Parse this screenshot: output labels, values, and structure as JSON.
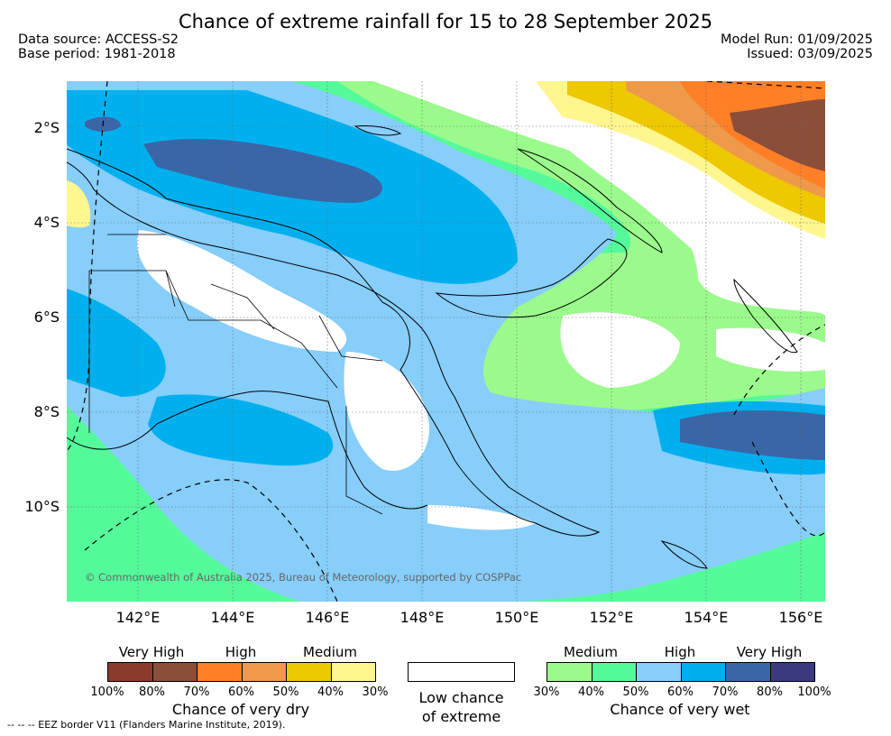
{
  "title": "Chance of extreme rainfall for 15 to 28 September 2025",
  "header": {
    "data_source": "Data source: ACCESS-S2",
    "base_period": "Base period: 1981-2018",
    "model_run": "Model Run: 01/09/2025",
    "issued": "Issued: 03/09/2025"
  },
  "map": {
    "lat_labels": [
      "2°S",
      "4°S",
      "6°S",
      "8°S",
      "10°S"
    ],
    "lon_labels": [
      "142°E",
      "144°E",
      "146°E",
      "148°E",
      "150°E",
      "152°E",
      "154°E",
      "156°E"
    ],
    "copyright": "© Commonwealth of Australia 2025, Bureau of Meteorology, supported by COSPPac"
  },
  "legend": {
    "dry": {
      "captions": [
        "Very High",
        "High",
        "Medium"
      ],
      "percents": [
        "100%",
        "80%",
        "70%",
        "60%",
        "50%",
        "40%",
        "30%"
      ],
      "colors": [
        "#8b3a2e",
        "#8b4e3a",
        "#ff7f27",
        "#ee9a4a",
        "#eec800",
        "#fff68f"
      ],
      "title": "Chance of very dry"
    },
    "low": {
      "line1": "Low chance",
      "line2": "of extreme"
    },
    "wet": {
      "captions": [
        "Medium",
        "High",
        "Very High"
      ],
      "percents": [
        "30%",
        "40%",
        "50%",
        "60%",
        "70%",
        "80%",
        "100%"
      ],
      "colors": [
        "#9bfa8c",
        "#54fa9a",
        "#87cefa",
        "#00b0ee",
        "#3a66a8",
        "#3a3a80"
      ],
      "title": "Chance of very wet"
    }
  },
  "footer": "--  --  -- EEZ border V11 (Flanders Marine Institute, 2019)."
}
